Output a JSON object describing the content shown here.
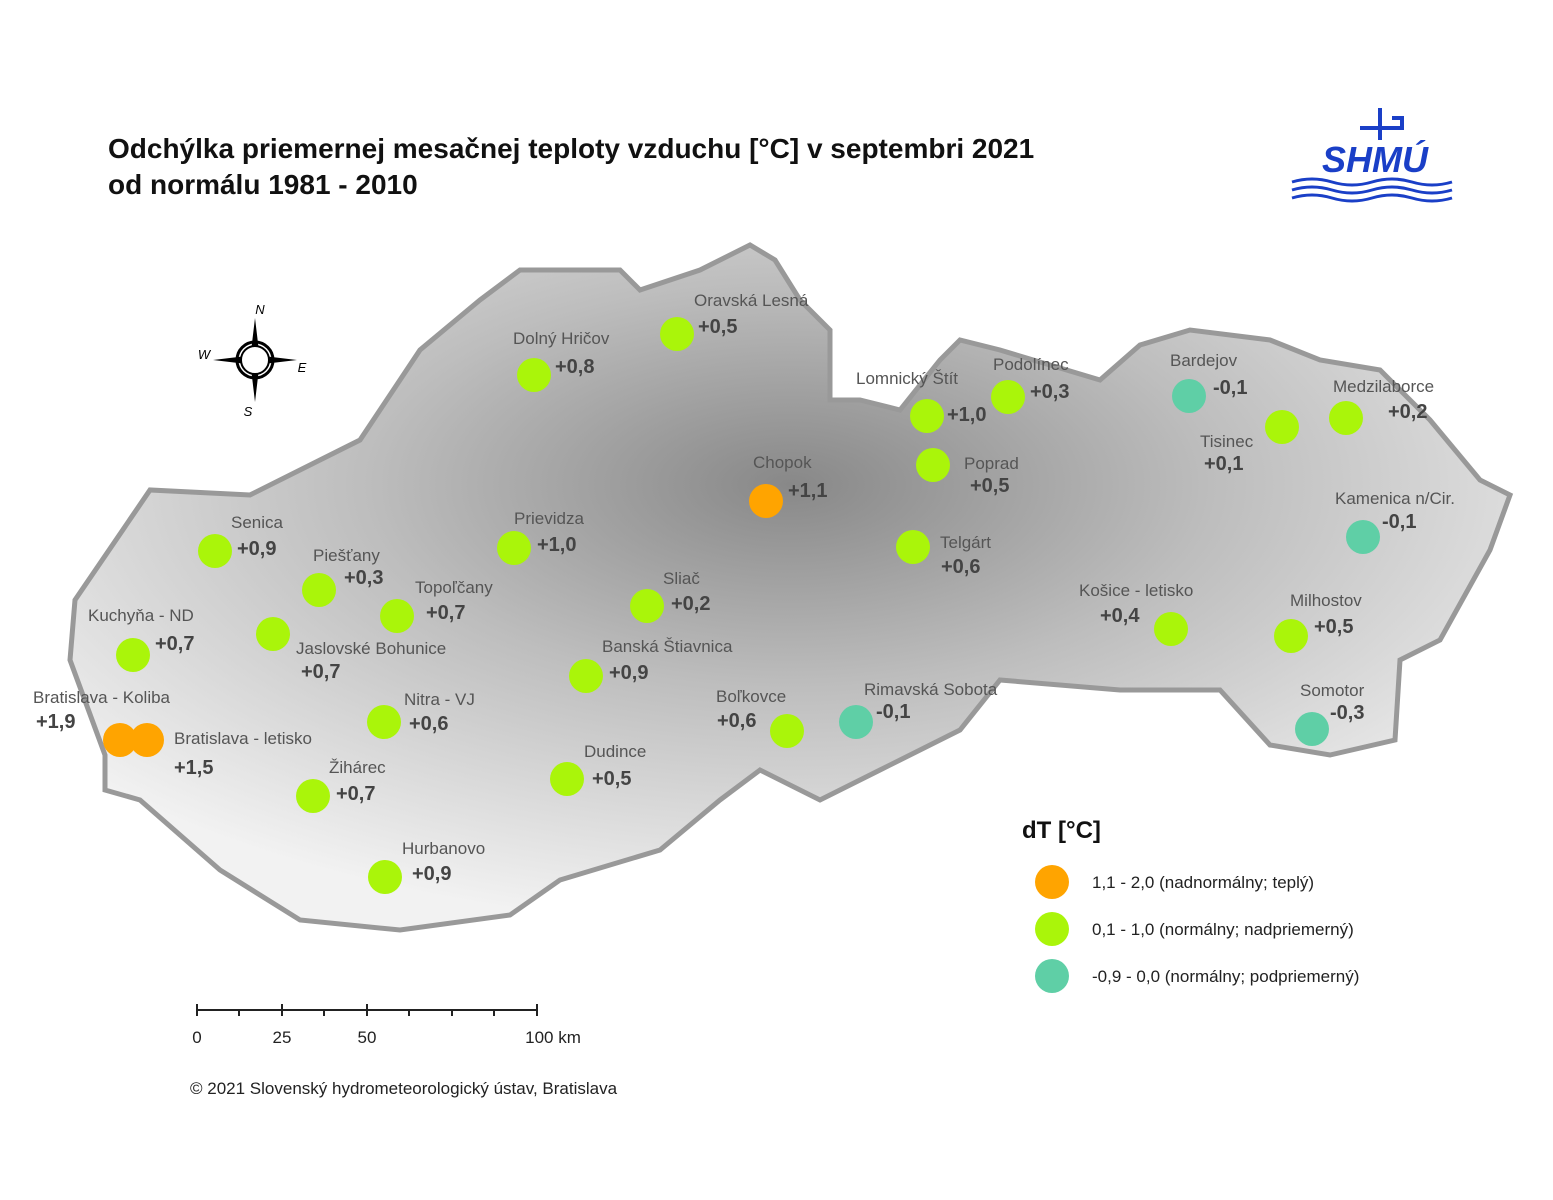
{
  "header": {
    "title_line1": "Odchýlka priemernej mesačnej teploty vzduchu [°C] v septembri 2021",
    "title_line2": "od normálu 1981 - 2010",
    "logo": "SHMÚ"
  },
  "compass": {
    "north": "N",
    "west": "W",
    "east": "E",
    "south": "S"
  },
  "stations": [
    {
      "name": "Oravská Lesná",
      "value": "+0,5",
      "color": "#aaf50a"
    },
    {
      "name": "Dolný Hričov",
      "value": "+0,8",
      "color": "#aaf50a"
    },
    {
      "name": "Lomnický Štít",
      "value": "+1,0",
      "color": "#aaf50a"
    },
    {
      "name": "Podolínec",
      "value": "+0,3",
      "color": "#aaf50a"
    },
    {
      "name": "Bardejov",
      "value": "-0,1",
      "color": "#5fcfa6"
    },
    {
      "name": "Medzilaborce",
      "value": "+0,2",
      "color": "#aaf50a"
    },
    {
      "name": "Tisinec",
      "value": "+0,1",
      "color": "#aaf50a"
    },
    {
      "name": "Chopok",
      "value": "+1,1",
      "color": "#ffa400"
    },
    {
      "name": "Poprad",
      "value": "+0,5",
      "color": "#aaf50a"
    },
    {
      "name": "Kamenica n/Cir.",
      "value": "-0,1",
      "color": "#5fcfa6"
    },
    {
      "name": "Senica",
      "value": "+0,9",
      "color": "#aaf50a"
    },
    {
      "name": "Prievidza",
      "value": "+1,0",
      "color": "#aaf50a"
    },
    {
      "name": "Telgárt",
      "value": "+0,6",
      "color": "#aaf50a"
    },
    {
      "name": "Piešťany",
      "value": "+0,3",
      "color": "#aaf50a"
    },
    {
      "name": "Topoľčany",
      "value": "+0,7",
      "color": "#aaf50a"
    },
    {
      "name": "Sliač",
      "value": "+0,2",
      "color": "#aaf50a"
    },
    {
      "name": "Košice - letisko",
      "value": "+0,4",
      "color": "#aaf50a"
    },
    {
      "name": "Milhostov",
      "value": "+0,5",
      "color": "#aaf50a"
    },
    {
      "name": "Kuchyňa - ND",
      "value": "+0,7",
      "color": "#aaf50a"
    },
    {
      "name": "Jaslovské Bohunice",
      "value": "+0,7",
      "color": "#aaf50a"
    },
    {
      "name": "Banská Štiavnica",
      "value": "+0,9",
      "color": "#aaf50a"
    },
    {
      "name": "Bratislava - Koliba",
      "value": "+1,9",
      "color": "#ffa400"
    },
    {
      "name": "Bratislava - letisko",
      "value": "+1,5",
      "color": "#ffa400"
    },
    {
      "name": "Nitra - VJ",
      "value": "+0,6",
      "color": "#aaf50a"
    },
    {
      "name": "Boľkovce",
      "value": "+0,6",
      "color": "#aaf50a"
    },
    {
      "name": "Rimavská Sobota",
      "value": "-0,1",
      "color": "#5fcfa6"
    },
    {
      "name": "Somotor",
      "value": "-0,3",
      "color": "#5fcfa6"
    },
    {
      "name": "Dudince",
      "value": "+0,5",
      "color": "#aaf50a"
    },
    {
      "name": "Žihárec",
      "value": "+0,7",
      "color": "#aaf50a"
    },
    {
      "name": "Hurbanovo",
      "value": "+0,9",
      "color": "#aaf50a"
    }
  ],
  "legend": {
    "title": "dT [°C]",
    "items": [
      {
        "label": "1,1 - 2,0 (nadnormálny; teplý)",
        "color": "#ffa400"
      },
      {
        "label": "0,1 - 1,0 (normálny; nadpriemerný)",
        "color": "#aaf50a"
      },
      {
        "label": "-0,9 - 0,0 (normálny; podpriemerný)",
        "color": "#5fcfa6"
      }
    ]
  },
  "scale_bar": {
    "labels": [
      "0",
      "25",
      "50",
      "100 km"
    ]
  },
  "footer": {
    "copyright": "© 2021 Slovenský hydrometeorologický ústav, Bratislava"
  }
}
